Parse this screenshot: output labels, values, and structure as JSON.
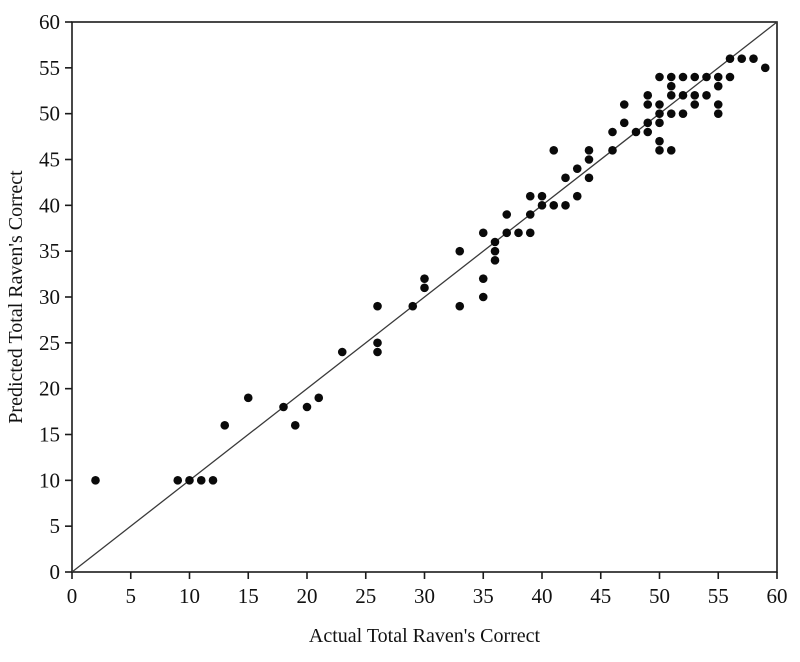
{
  "figure": {
    "background": "#ffffff",
    "point_color": "#0a0a0a",
    "axis_color": "#1a1a1a",
    "line_color": "#3a3a3a"
  },
  "chart_data": {
    "type": "scatter",
    "title": "",
    "xlabel": "Actual Total Raven's Correct",
    "ylabel": "Predicted Total Raven's Correct",
    "xlim": [
      0,
      60
    ],
    "ylim": [
      0,
      60
    ],
    "x_ticks": [
      0,
      5,
      10,
      15,
      20,
      25,
      30,
      35,
      40,
      45,
      50,
      55,
      60
    ],
    "y_ticks": [
      0,
      5,
      10,
      15,
      20,
      25,
      30,
      35,
      40,
      45,
      50,
      55,
      60
    ],
    "grid": "off",
    "legend": "none",
    "reference_line": {
      "name": "identity-line",
      "x1": 0,
      "y1": 0,
      "x2": 60,
      "y2": 60
    },
    "points": [
      [
        2,
        10
      ],
      [
        9,
        10
      ],
      [
        10,
        10
      ],
      [
        11,
        10
      ],
      [
        12,
        10
      ],
      [
        13,
        16
      ],
      [
        15,
        19
      ],
      [
        18,
        18
      ],
      [
        19,
        16
      ],
      [
        20,
        18
      ],
      [
        21,
        19
      ],
      [
        23,
        24
      ],
      [
        26,
        24
      ],
      [
        26,
        25
      ],
      [
        26,
        29
      ],
      [
        29,
        29
      ],
      [
        30,
        31
      ],
      [
        30,
        32
      ],
      [
        33,
        29
      ],
      [
        33,
        35
      ],
      [
        35,
        30
      ],
      [
        35,
        32
      ],
      [
        35,
        37
      ],
      [
        36,
        34
      ],
      [
        36,
        35
      ],
      [
        36,
        36
      ],
      [
        37,
        37
      ],
      [
        38,
        37
      ],
      [
        39,
        37
      ],
      [
        37,
        39
      ],
      [
        39,
        39
      ],
      [
        39,
        41
      ],
      [
        40,
        40
      ],
      [
        40,
        41
      ],
      [
        41,
        40
      ],
      [
        42,
        40
      ],
      [
        43,
        41
      ],
      [
        41,
        46
      ],
      [
        42,
        43
      ],
      [
        43,
        44
      ],
      [
        44,
        43
      ],
      [
        44,
        45
      ],
      [
        44,
        46
      ],
      [
        46,
        46
      ],
      [
        46,
        48
      ],
      [
        47,
        49
      ],
      [
        47,
        51
      ],
      [
        48,
        48
      ],
      [
        49,
        48
      ],
      [
        50,
        47
      ],
      [
        50,
        46
      ],
      [
        51,
        46
      ],
      [
        49,
        49
      ],
      [
        50,
        49
      ],
      [
        49,
        51
      ],
      [
        50,
        51
      ],
      [
        49,
        52
      ],
      [
        50,
        50
      ],
      [
        51,
        50
      ],
      [
        52,
        50
      ],
      [
        50,
        54
      ],
      [
        51,
        54
      ],
      [
        52,
        54
      ],
      [
        53,
        54
      ],
      [
        54,
        54
      ],
      [
        55,
        54
      ],
      [
        56,
        54
      ],
      [
        51,
        53
      ],
      [
        51,
        52
      ],
      [
        52,
        52
      ],
      [
        53,
        52
      ],
      [
        53,
        51
      ],
      [
        54,
        52
      ],
      [
        55,
        53
      ],
      [
        55,
        51
      ],
      [
        55,
        50
      ],
      [
        56,
        56
      ],
      [
        57,
        56
      ],
      [
        58,
        56
      ],
      [
        59,
        55
      ]
    ]
  }
}
